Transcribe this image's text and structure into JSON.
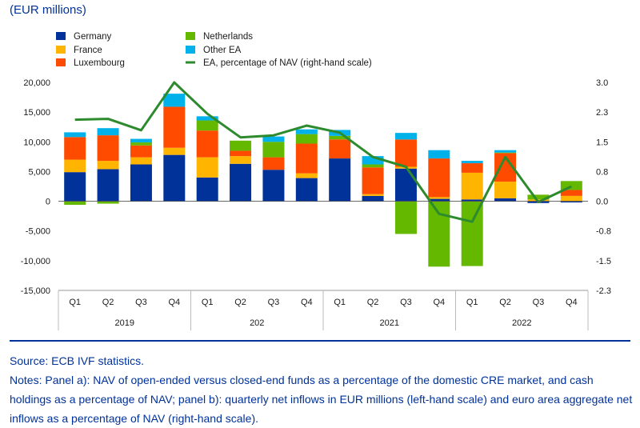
{
  "unit_label": "(EUR millions)",
  "source": "Source: ECB IVF statistics.",
  "notes": "Notes: Panel a): NAV of open-ended versus closed-end funds as a percentage of the domestic CRE market, and cash holdings as a percentage of NAV; panel b): quarterly net inflows in EUR millions (left-hand scale) and euro area aggregate net inflows as a percentage of NAV (right-hand scale).",
  "colors": {
    "Germany": "#003299",
    "France": "#ffb400",
    "Luxembourg": "#ff4b00",
    "Netherlands": "#65b800",
    "Other EA": "#00b1ea",
    "line": "#2d8a2d"
  },
  "chart_data": {
    "type": "bar",
    "stacked": true,
    "title": "",
    "ylabel": "EUR millions",
    "y2label": "EA, percentage of NAV",
    "categories": [
      "Q1",
      "Q2",
      "Q3",
      "Q4",
      "Q1",
      "Q2",
      "Q3",
      "Q4",
      "Q1",
      "Q2",
      "Q3",
      "Q4",
      "Q1",
      "Q2",
      "Q3",
      "Q4"
    ],
    "year_groups": [
      {
        "label": "2019",
        "count": 4
      },
      {
        "label": "202",
        "count": 4
      },
      {
        "label": "2021",
        "count": 4
      },
      {
        "label": "2022",
        "count": 4
      }
    ],
    "ylim": [
      -15000,
      20000
    ],
    "yticks": [
      20000,
      15000,
      10000,
      5000,
      0,
      -5000,
      -10000,
      -15000
    ],
    "ytick_labels": [
      "20,000",
      "15,000",
      "10,000",
      "5,000",
      "0",
      "-5,000",
      "-10,000",
      "-15,000"
    ],
    "y2ticks": [
      3.0,
      2.3,
      1.5,
      0.8,
      0.0,
      -0.8,
      -1.5,
      -2.3
    ],
    "y2tick_labels": [
      "3.0",
      "2.3",
      "1.5",
      "0.8",
      "0.0",
      "-0.8",
      "-1.5",
      "-2.3"
    ],
    "series": [
      {
        "name": "Germany",
        "values": [
          4900,
          5400,
          6200,
          7800,
          4000,
          6300,
          5300,
          3900,
          7200,
          900,
          5500,
          400,
          300,
          500,
          -300,
          -200
        ]
      },
      {
        "name": "France",
        "values": [
          2100,
          1400,
          1200,
          1200,
          3400,
          1300,
          0,
          800,
          0,
          300,
          300,
          300,
          4500,
          2800,
          300,
          900
        ]
      },
      {
        "name": "Luxembourg",
        "values": [
          3800,
          4300,
          2000,
          6900,
          4500,
          900,
          2100,
          5000,
          3200,
          4500,
          4600,
          6500,
          1600,
          4800,
          0,
          1000
        ]
      },
      {
        "name": "Netherlands",
        "values": [
          -600,
          -400,
          500,
          0,
          1700,
          1700,
          2600,
          1600,
          600,
          500,
          -5500,
          -11000,
          -10900,
          100,
          800,
          1500
        ]
      },
      {
        "name": "Other EA",
        "values": [
          800,
          1200,
          600,
          2200,
          700,
          0,
          900,
          800,
          1000,
          1400,
          1100,
          1400,
          400,
          400,
          0,
          0
        ]
      }
    ],
    "line": {
      "name": "EA, percentage of NAV (right-hand scale)",
      "values": [
        2.05,
        2.07,
        1.78,
        3.0,
        2.2,
        1.6,
        1.65,
        1.9,
        1.72,
        1.1,
        0.85,
        -0.35,
        -0.55,
        1.1,
        -0.05,
        0.35
      ]
    },
    "legend": [
      "Germany",
      "France",
      "Luxembourg",
      "Netherlands",
      "Other EA",
      "EA, percentage of NAV (right-hand scale)"
    ]
  }
}
